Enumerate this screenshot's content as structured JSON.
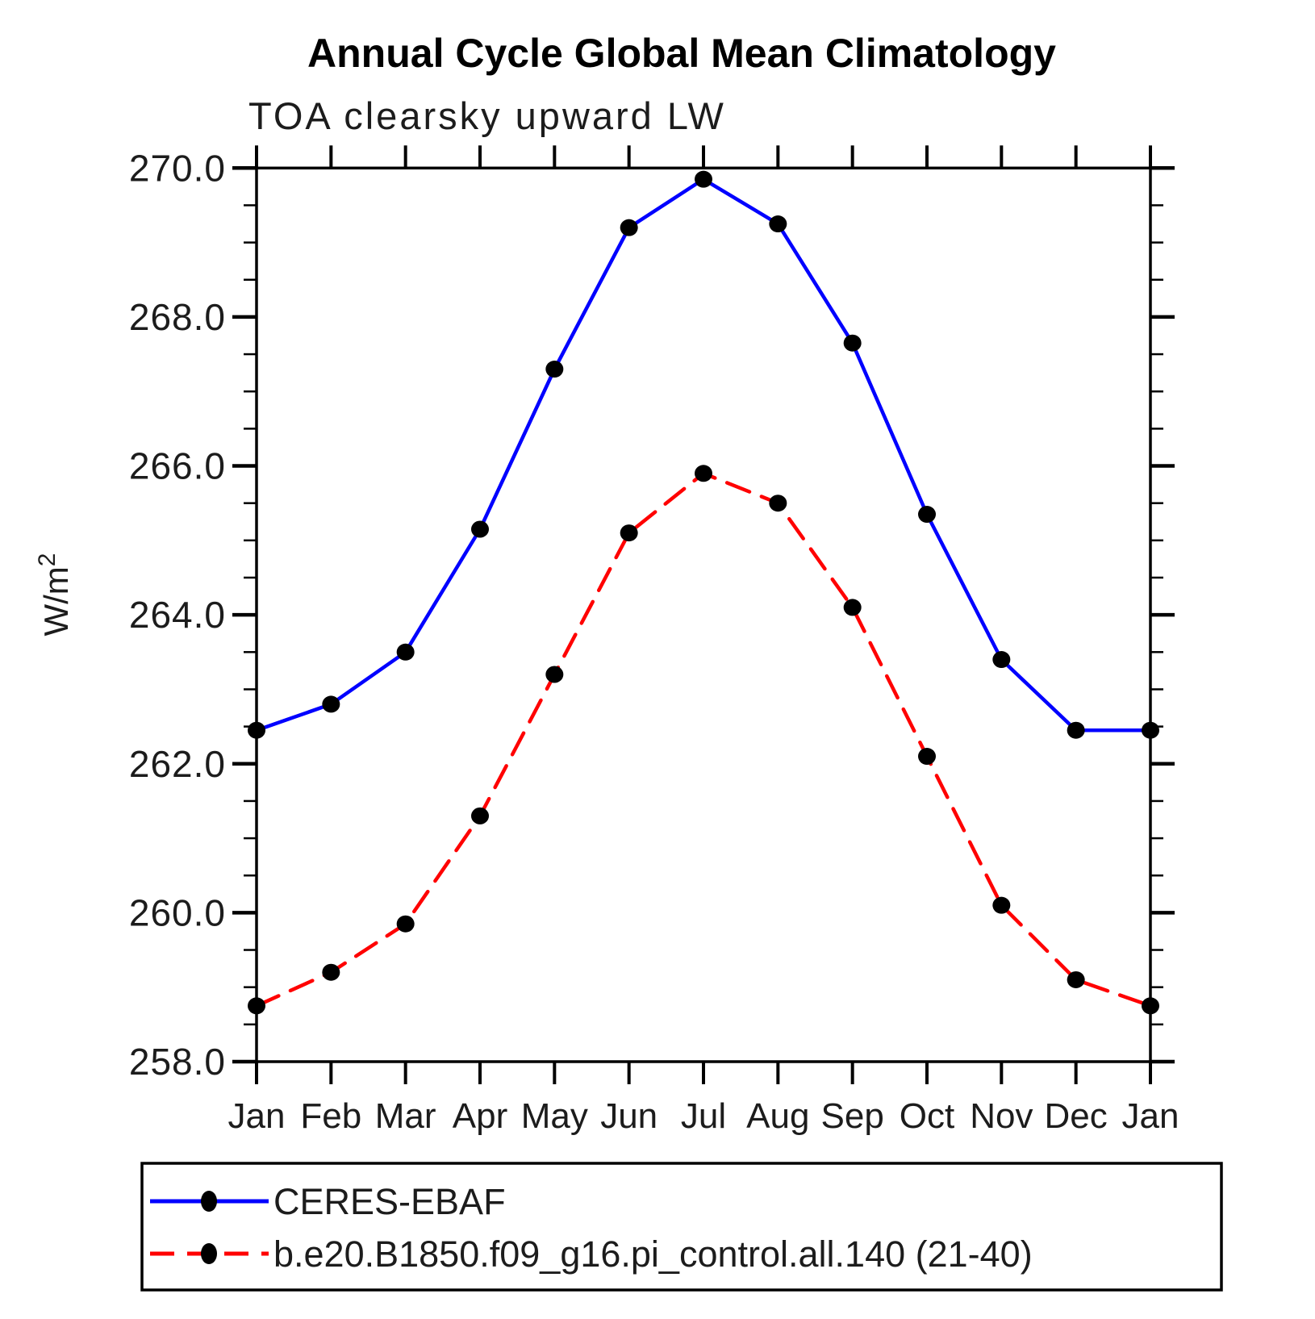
{
  "title": "Annual Cycle Global Mean Climatology",
  "subtitle": "TOA clearsky upward LW",
  "ylabel_base": "W/m",
  "ylabel_exp": "2",
  "chart_data": {
    "type": "line",
    "title": "Annual Cycle Global Mean Climatology",
    "subtitle": "TOA clearsky upward LW",
    "ylabel": "W/m²",
    "xlabel": "",
    "x_categories": [
      "Jan",
      "Feb",
      "Mar",
      "Apr",
      "May",
      "Jun",
      "Jul",
      "Aug",
      "Sep",
      "Oct",
      "Nov",
      "Dec",
      "Jan"
    ],
    "ylim": [
      258.0,
      270.0
    ],
    "ytick_major_step": 2.0,
    "ytick_minor_step": 0.5,
    "ytick_labels": [
      "258.0",
      "260.0",
      "262.0",
      "264.0",
      "266.0",
      "268.0",
      "270.0"
    ],
    "grid": "off",
    "legend_position": "bottom-left-box",
    "series": [
      {
        "name": "CERES-EBAF",
        "color": "#0000ff",
        "line_style": "solid",
        "marker": "filled-circle",
        "marker_color": "#000000",
        "values": [
          262.45,
          262.8,
          263.5,
          265.15,
          267.3,
          269.2,
          269.85,
          269.25,
          267.65,
          265.35,
          263.4,
          262.45,
          262.45
        ]
      },
      {
        "name": "b.e20.B1850.f09_g16.pi_control.all.140 (21-40)",
        "color": "#ff0000",
        "line_style": "dashed",
        "marker": "filled-circle",
        "marker_color": "#000000",
        "values": [
          258.75,
          259.2,
          259.85,
          261.3,
          263.2,
          265.1,
          265.9,
          265.5,
          264.1,
          262.1,
          260.1,
          259.1,
          258.75
        ]
      }
    ]
  },
  "colors": {
    "axis": "#000000",
    "series1": "#0000ff",
    "series2": "#ff0000",
    "marker": "#000000",
    "background": "#ffffff"
  }
}
